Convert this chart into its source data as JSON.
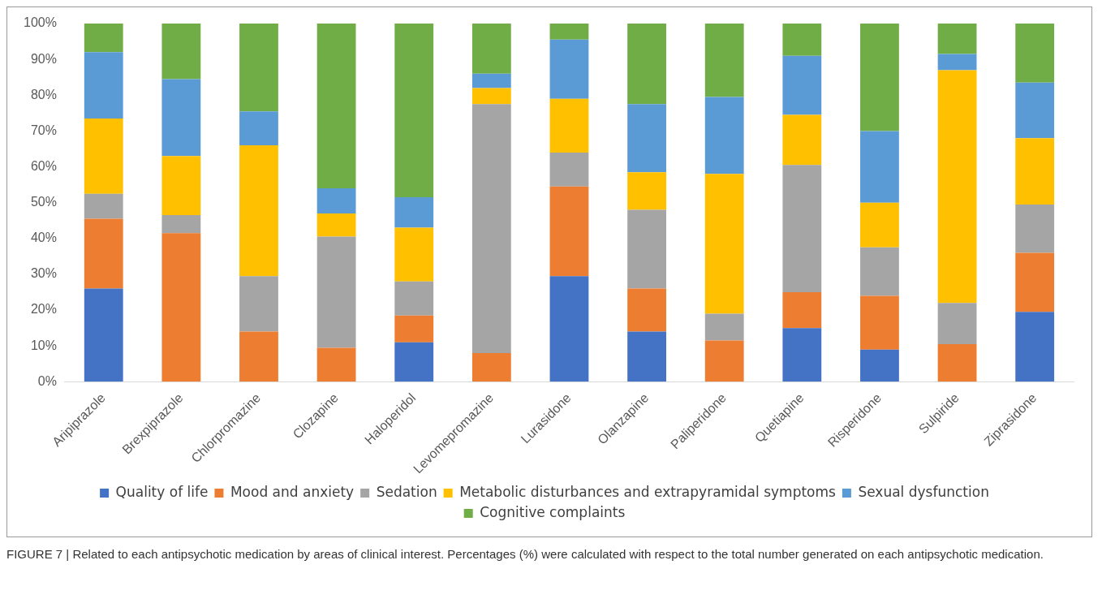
{
  "chart_data": {
    "type": "bar",
    "stacked": true,
    "legend": "bottom",
    "categories": [
      "Aripiprazole",
      "Brexpiprazole",
      "Chlorpromazine",
      "Clozapine",
      "Haloperidol",
      "Levomepromazine",
      "Lurasidone",
      "Olanzapine",
      "Paliperidone",
      "Quetiapine",
      "Risperidone",
      "Sulpiride",
      "Ziprasidone"
    ],
    "series": [
      {
        "name": "Quality of life",
        "color": "#4472c4",
        "values": [
          26,
          0,
          0,
          0,
          11,
          0,
          29.5,
          14,
          0,
          15,
          9,
          0,
          19.5
        ]
      },
      {
        "name": "Mood and anxiety",
        "color": "#ed7d31",
        "values": [
          19.5,
          41.5,
          14,
          9.5,
          7.5,
          8,
          25,
          12,
          11.5,
          10,
          15,
          10.5,
          16.5
        ]
      },
      {
        "name": "Sedation",
        "color": "#a5a5a5",
        "values": [
          7,
          5,
          15.5,
          31,
          9.5,
          69.5,
          9.5,
          22,
          7.5,
          35.5,
          13.5,
          11.5,
          13.5
        ]
      },
      {
        "name": "Metabolic disturbances and extrapyramidal symptoms",
        "color": "#ffc000",
        "values": [
          21,
          16.5,
          36.5,
          6.5,
          15,
          4.5,
          15,
          10.5,
          39,
          14,
          12.5,
          65,
          18.5
        ]
      },
      {
        "name": "Sexual dysfunction",
        "color": "#5b9bd5",
        "values": [
          18.5,
          21.5,
          9.5,
          7,
          8.5,
          4,
          16.5,
          19,
          21.5,
          16.5,
          20,
          4.5,
          15.5
        ]
      },
      {
        "name": "Cognitive complaints",
        "color": "#70ad47",
        "values": [
          8,
          15.5,
          24.5,
          46,
          48.5,
          14,
          4.5,
          22.5,
          20.5,
          9,
          30,
          8.5,
          16.5
        ]
      }
    ],
    "ylim": [
      0,
      100
    ],
    "yticks": [
      {
        "value": 0,
        "label": "0%"
      },
      {
        "value": 10,
        "label": "10%"
      },
      {
        "value": 20,
        "label": "20%"
      },
      {
        "value": 30,
        "label": "30%"
      },
      {
        "value": 40,
        "label": "40%"
      },
      {
        "value": 50,
        "label": "50%"
      },
      {
        "value": 60,
        "label": "60%"
      },
      {
        "value": 70,
        "label": "70%"
      },
      {
        "value": 80,
        "label": "80%"
      },
      {
        "value": 90,
        "label": "90%"
      },
      {
        "value": 100,
        "label": "100%"
      }
    ],
    "annotations": [
      "FIGURE 7 | Related to each antipsychotic medication by areas of clinical interest. Percentages (%) were calculated with respect to the total number generated on each antipsychotic medication."
    ]
  }
}
